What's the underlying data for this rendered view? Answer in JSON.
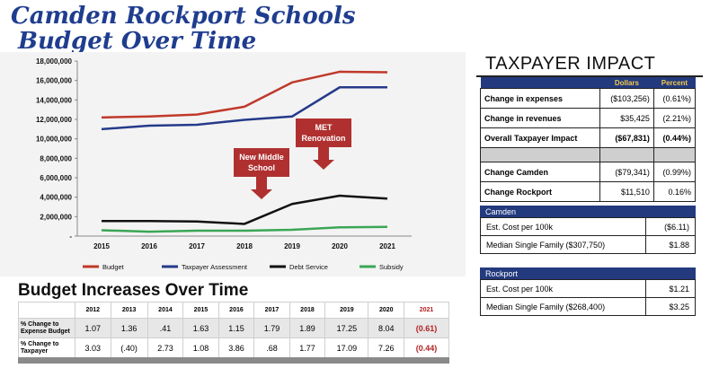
{
  "title_line1": "Camden Rockport Schools",
  "title_line2": "Budget Over Time",
  "chart_data": {
    "type": "line",
    "x": [
      "2015",
      "2016",
      "2017",
      "2018",
      "2019",
      "2020",
      "2021"
    ],
    "y_ticks": [
      "18,000,000",
      "16,000,000",
      "14,000,000",
      "12,000,000",
      "10,000,000",
      "8,000,000",
      "6,000,000",
      "4,000,000",
      "2,000,000",
      "-"
    ],
    "ylim": [
      0,
      18000000
    ],
    "series": [
      {
        "name": "Budget",
        "color": "#c0392b",
        "values": [
          12200000,
          12300000,
          12500000,
          13300000,
          15800000,
          16900000,
          16850000
        ]
      },
      {
        "name": "Taxpayer Assessment",
        "color": "#253a8a",
        "values": [
          11000000,
          11350000,
          11450000,
          11950000,
          12300000,
          15300000,
          15300000
        ]
      },
      {
        "name": "Debt Service",
        "color": "#111111",
        "values": [
          1550000,
          1550000,
          1500000,
          1250000,
          3300000,
          4150000,
          3850000
        ]
      },
      {
        "name": "Subsidy",
        "color": "#3aa655",
        "values": [
          600000,
          450000,
          550000,
          550000,
          650000,
          900000,
          950000
        ]
      }
    ],
    "annotations": [
      {
        "text_line1": "New Middle",
        "text_line2": "School"
      },
      {
        "text_line1": "MET",
        "text_line2": "Renovation"
      }
    ]
  },
  "increases": {
    "title": "Budget Increases Over Time",
    "years": [
      "2012",
      "2013",
      "2014",
      "2015",
      "2016",
      "2017",
      "2018",
      "2019",
      "2020",
      "2021"
    ],
    "rows": [
      {
        "label": "% Change to Expense Budget",
        "values": [
          "1.07",
          "1.36",
          ".41",
          "1.63",
          "1.15",
          "1.79",
          "1.89",
          "17.25",
          "8.04",
          "(0.61)"
        ]
      },
      {
        "label": "% Change to Taxpayer",
        "values": [
          "3.03",
          "(.40)",
          "2.73",
          "1.08",
          "3.86",
          ".68",
          "1.77",
          "17.09",
          "7.26",
          "(0.44)"
        ]
      }
    ]
  },
  "taxpayer": {
    "title": "TAXPAYER IMPACT",
    "col_dollars": "Dollars",
    "col_percent": "Percent",
    "rows": [
      {
        "label": "Change in expenses",
        "dollars": "($103,256)",
        "percent": "(0.61%)"
      },
      {
        "label": "Change in revenues",
        "dollars": "$35,425",
        "percent": "(2.21%)"
      },
      {
        "label": "Overall Taxpayer Impact",
        "dollars": "($67,831)",
        "percent": "(0.44%)"
      },
      {
        "label": "Change Camden",
        "dollars": "($79,341)",
        "percent": "(0.99%)"
      },
      {
        "label": "Change Rockport",
        "dollars": "$11,510",
        "percent": "0.16%"
      }
    ]
  },
  "camden": {
    "header": "Camden",
    "rows": [
      {
        "label": "Est. Cost per 100k",
        "value": "($6.11)"
      },
      {
        "label": "Median Single Family ($307,750)",
        "value": "$1.88"
      }
    ]
  },
  "rockport": {
    "header": "Rockport",
    "rows": [
      {
        "label": "Est. Cost per 100k",
        "value": "$1.21"
      },
      {
        "label": "Median Single Family ($268,400)",
        "value": "$3.25"
      }
    ]
  }
}
